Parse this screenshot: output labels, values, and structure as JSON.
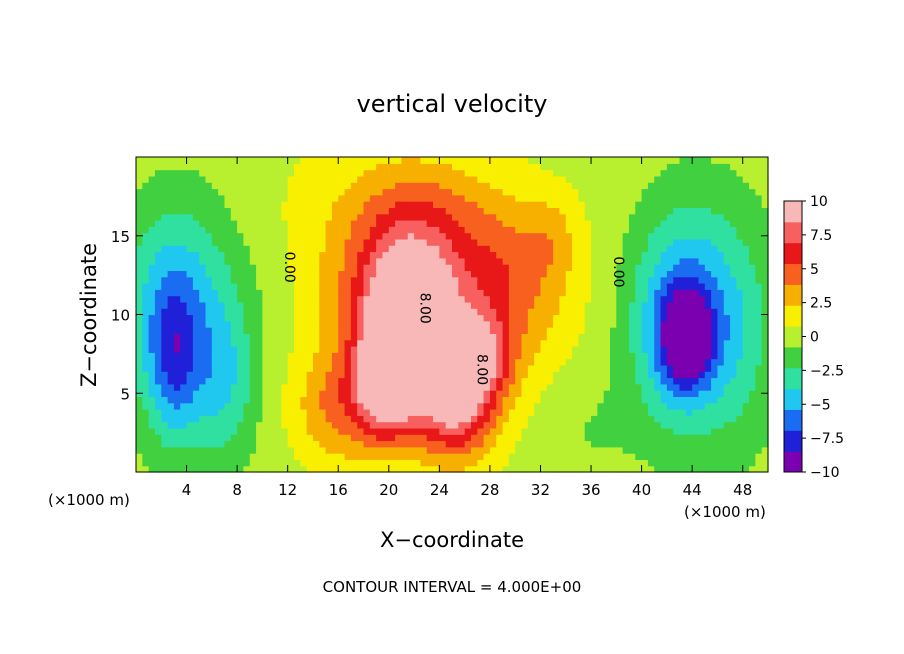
{
  "chart_data": {
    "type": "heatmap",
    "title": "vertical velocity",
    "xlabel": "X−coordinate",
    "ylabel": "Z−coordinate",
    "x_unit_left": "(×1000 m)",
    "x_unit_right": "(×1000 m)",
    "footer": "CONTOUR INTERVAL = 4.000E+00",
    "xlim": [
      0,
      50
    ],
    "ylim": [
      0,
      20
    ],
    "x_ticks": [
      4,
      8,
      12,
      16,
      20,
      24,
      28,
      32,
      36,
      40,
      44,
      48
    ],
    "y_ticks": [
      5,
      10,
      15
    ],
    "colorbar": {
      "range": [
        -10,
        10
      ],
      "tick_values": [
        10,
        7.5,
        5,
        2.5,
        0,
        -2.5,
        -5,
        -7.5,
        -10
      ],
      "tick_labels": [
        "10",
        "7.5",
        "5",
        "2.5",
        "0",
        "−2.5",
        "−5",
        "−7.5",
        "−10"
      ],
      "colors": [
        "#7a00b0",
        "#2020d8",
        "#1a6cf0",
        "#20c8f0",
        "#30e0a0",
        "#40d040",
        "#b8f030",
        "#f8f000",
        "#f8b000",
        "#f86020",
        "#e81818",
        "#f86060",
        "#f8b8b8"
      ]
    },
    "contour_labels": [
      {
        "text": "0.00",
        "x": 11.8,
        "z": 13.0
      },
      {
        "text": "0.00",
        "x": 37.8,
        "z": 12.7
      },
      {
        "text": "8.00",
        "x": 22.5,
        "z": 10.4
      },
      {
        "text": "8.00",
        "x": 27.0,
        "z": 6.5
      }
    ],
    "features": [
      {
        "x": 21.5,
        "z": 8.8,
        "sx": 2.2,
        "sz": 3.5,
        "a": 11.5
      },
      {
        "x": 19.5,
        "z": 5.5,
        "sx": 1.4,
        "sz": 2.2,
        "a": 6.0
      },
      {
        "x": 25.5,
        "z": 4.5,
        "sx": 2.0,
        "sz": 2.5,
        "a": 7.0
      },
      {
        "x": 27.5,
        "z": 7.5,
        "sx": 1.5,
        "sz": 1.8,
        "a": 4.5
      },
      {
        "x": 21.0,
        "z": 11.5,
        "sx": 4.5,
        "sz": 5.0,
        "a": 4.5
      },
      {
        "x": 26.0,
        "z": 10.0,
        "sx": 5.5,
        "sz": 5.0,
        "a": 3.5
      },
      {
        "x": 16.0,
        "z": 4.0,
        "sx": 2.5,
        "sz": 2.5,
        "a": 3.5
      },
      {
        "x": 30.0,
        "z": 13.0,
        "sx": 3.0,
        "sz": 3.0,
        "a": 2.0
      },
      {
        "x": 33.0,
        "z": 15.0,
        "sx": 1.5,
        "sz": 2.0,
        "a": 1.5
      },
      {
        "x": 23.0,
        "z": 17.0,
        "sx": 4.0,
        "sz": 2.0,
        "a": 1.2
      },
      {
        "x": 43.5,
        "z": 8.5,
        "sx": 1.3,
        "sz": 2.0,
        "a": -7.5
      },
      {
        "x": 43.0,
        "z": 9.5,
        "sx": 2.8,
        "sz": 4.5,
        "a": -5.0
      },
      {
        "x": 45.5,
        "z": 10.0,
        "sx": 3.5,
        "sz": 5.5,
        "a": -2.5
      },
      {
        "x": 3.0,
        "z": 7.0,
        "sx": 1.4,
        "sz": 3.5,
        "a": -4.0
      },
      {
        "x": 3.0,
        "z": 10.0,
        "sx": 3.0,
        "sz": 5.0,
        "a": -4.0
      },
      {
        "x": 7.0,
        "z": 5.5,
        "sx": 1.8,
        "sz": 3.5,
        "a": -3.0
      },
      {
        "x": 5.0,
        "z": 13.0,
        "sx": 4.5,
        "sz": 5.0,
        "a": -1.5
      },
      {
        "x": 35.0,
        "z": 3.0,
        "sx": 3.0,
        "sz": 3.0,
        "a": -1.0
      },
      {
        "x": 48.0,
        "z": 8.0,
        "sx": 2.0,
        "sz": 5.0,
        "a": -1.0
      },
      {
        "x": 10.0,
        "z": 17.0,
        "sx": 10.0,
        "sz": 4.0,
        "a": 0.8
      }
    ]
  }
}
